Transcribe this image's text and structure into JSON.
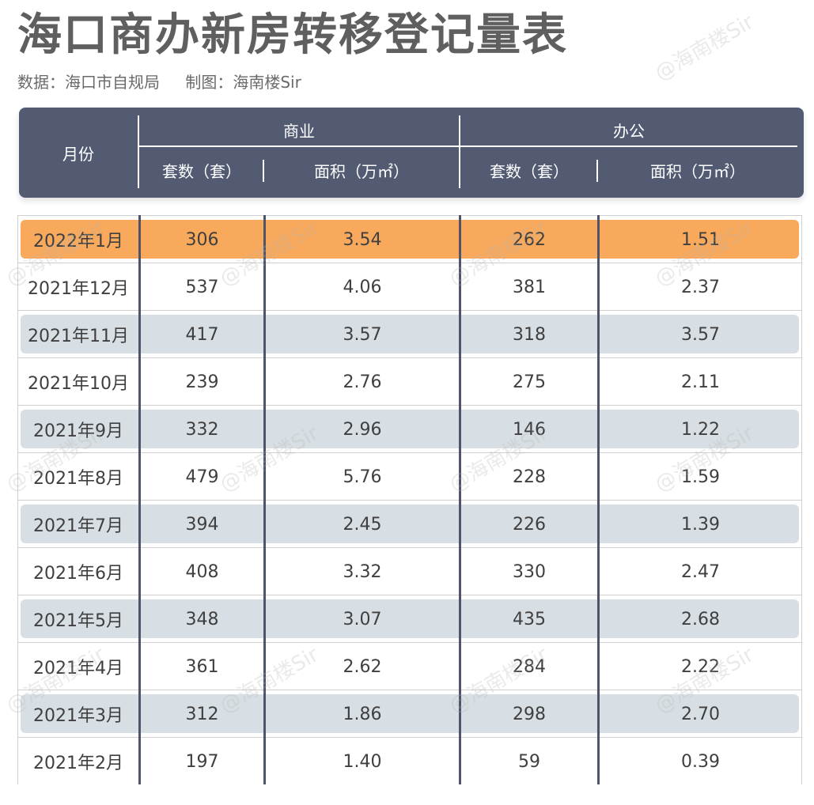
{
  "title": "海口商办新房转移登记量表",
  "subtitle": {
    "source": "数据：海口市自规局",
    "author": "制图：海南楼Sir"
  },
  "watermark": "@海南楼Sir",
  "colors": {
    "header_bg": "#525b72",
    "highlight_row": "#f8a95c",
    "alt_row": "#d8dfe4",
    "divider": "#4e5568"
  },
  "header": {
    "month": "月份",
    "groups": [
      {
        "label": "商业",
        "cols": [
          "套数（套）",
          "面积（万㎡）"
        ]
      },
      {
        "label": "办公",
        "cols": [
          "套数（套）",
          "面积（万㎡）"
        ]
      }
    ]
  },
  "rows": [
    {
      "month": "2022年1月",
      "biz_units": "306",
      "biz_area": "3.54",
      "off_units": "262",
      "off_area": "1.51",
      "style": "highlight"
    },
    {
      "month": "2021年12月",
      "biz_units": "537",
      "biz_area": "4.06",
      "off_units": "381",
      "off_area": "2.37",
      "style": "plain"
    },
    {
      "month": "2021年11月",
      "biz_units": "417",
      "biz_area": "3.57",
      "off_units": "318",
      "off_area": "3.57",
      "style": "alt"
    },
    {
      "month": "2021年10月",
      "biz_units": "239",
      "biz_area": "2.76",
      "off_units": "275",
      "off_area": "2.11",
      "style": "plain"
    },
    {
      "month": "2021年9月",
      "biz_units": "332",
      "biz_area": "2.96",
      "off_units": "146",
      "off_area": "1.22",
      "style": "alt"
    },
    {
      "month": "2021年8月",
      "biz_units": "479",
      "biz_area": "5.76",
      "off_units": "228",
      "off_area": "1.59",
      "style": "plain"
    },
    {
      "month": "2021年7月",
      "biz_units": "394",
      "biz_area": "2.45",
      "off_units": "226",
      "off_area": "1.39",
      "style": "alt"
    },
    {
      "month": "2021年6月",
      "biz_units": "408",
      "biz_area": "3.32",
      "off_units": "330",
      "off_area": "2.47",
      "style": "plain"
    },
    {
      "month": "2021年5月",
      "biz_units": "348",
      "biz_area": "3.07",
      "off_units": "435",
      "off_area": "2.68",
      "style": "alt"
    },
    {
      "month": "2021年4月",
      "biz_units": "361",
      "biz_area": "2.62",
      "off_units": "284",
      "off_area": "2.22",
      "style": "plain"
    },
    {
      "month": "2021年3月",
      "biz_units": "312",
      "biz_area": "1.86",
      "off_units": "298",
      "off_area": "2.70",
      "style": "alt"
    },
    {
      "month": "2021年2月",
      "biz_units": "197",
      "biz_area": "1.40",
      "off_units": "59",
      "off_area": "0.39",
      "style": "plain"
    }
  ]
}
